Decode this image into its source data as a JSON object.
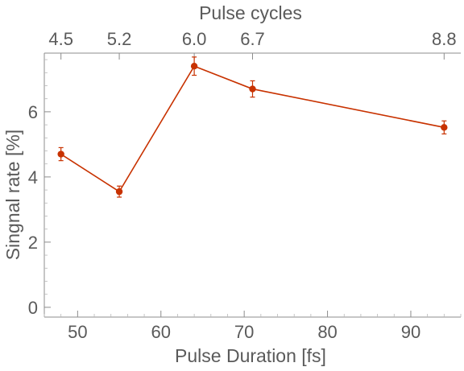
{
  "chart_data": {
    "type": "line",
    "xlabel": "Pulse Duration [fs]",
    "ylabel": "Singnal rate [%]",
    "top_axis_label": "Pulse cycles",
    "xlim": [
      46,
      96
    ],
    "ylim": [
      -0.3,
      7.8
    ],
    "x_ticks": [
      50,
      60,
      70,
      80,
      90
    ],
    "y_ticks": [
      0,
      2,
      4,
      6
    ],
    "top_ticks": [
      {
        "x": 48,
        "label": "4.5"
      },
      {
        "x": 55,
        "label": "5.2"
      },
      {
        "x": 64,
        "label": "6.0"
      },
      {
        "x": 71,
        "label": "6.7"
      },
      {
        "x": 94,
        "label": "8.8"
      }
    ],
    "grid": false,
    "series": [
      {
        "x": [
          48,
          55,
          64,
          71,
          94
        ],
        "y": [
          4.7,
          3.55,
          7.4,
          6.7,
          5.52
        ],
        "err": [
          0.2,
          0.17,
          0.28,
          0.25,
          0.2
        ],
        "color": "#c83200"
      }
    ]
  }
}
